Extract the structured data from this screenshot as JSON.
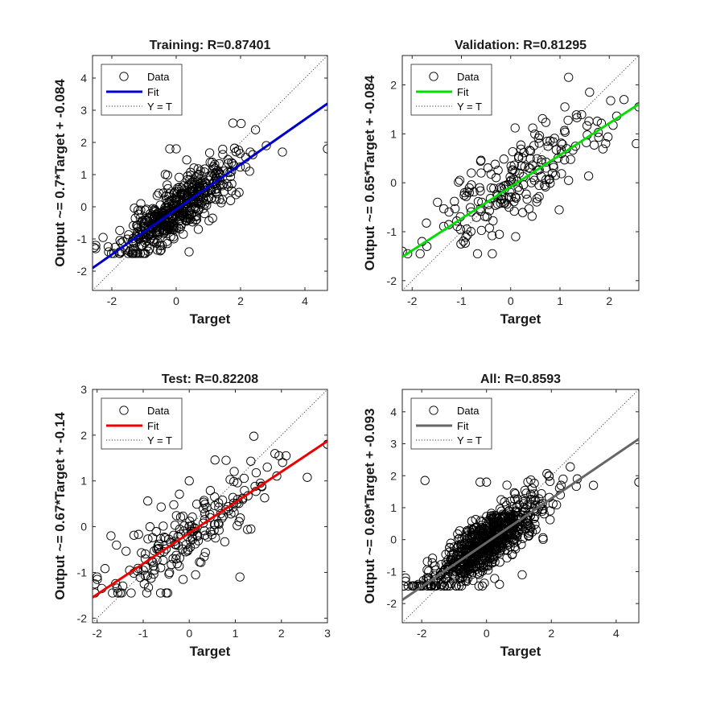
{
  "chart_data": [
    {
      "type": "scatter",
      "id": "training",
      "title": "Training: R=0.87401",
      "xlabel": "Target",
      "ylabel": "Output ~= 0.7*Target + -0.084",
      "xlim": [
        -2.6,
        4.7
      ],
      "ylim": [
        -2.6,
        4.7
      ],
      "xticks": [
        -2,
        0,
        2,
        4
      ],
      "yticks": [
        -2,
        -1,
        0,
        1,
        2,
        3,
        4
      ],
      "fit": {
        "slope": 0.7,
        "intercept": -0.084,
        "color": "#0000cc"
      },
      "legend": {
        "entries": [
          "Data",
          "Fit",
          "Y = T"
        ],
        "position": "top-left"
      },
      "cluster": {
        "count": 520,
        "xmean": 0.0,
        "xsd": 0.85,
        "noise": 0.42,
        "seed": 11
      },
      "points": [
        [
          -2.5,
          -1.2
        ],
        [
          -2.5,
          -1.3
        ],
        [
          4.7,
          1.8
        ],
        [
          3.3,
          1.7
        ],
        [
          2.3,
          1.7
        ],
        [
          -0.2,
          1.8
        ],
        [
          0.0,
          1.8
        ],
        [
          -2.1,
          -1.4
        ],
        [
          -1.7,
          -1.4
        ],
        [
          0.4,
          -1.4
        ],
        [
          2.8,
          1.9
        ]
      ]
    },
    {
      "type": "scatter",
      "id": "validation",
      "title": "Validation: R=0.81295",
      "xlabel": "Target",
      "ylabel": "Output ~= 0.65*Target + -0.084",
      "xlim": [
        -2.2,
        2.6
      ],
      "ylim": [
        -2.2,
        2.6
      ],
      "xticks": [
        -2,
        -1,
        0,
        1,
        2
      ],
      "yticks": [
        -2,
        -1,
        0,
        1,
        2
      ],
      "fit": {
        "slope": 0.65,
        "intercept": -0.084,
        "color": "#00dd00"
      },
      "legend": {
        "entries": [
          "Data",
          "Fit",
          "Y = T"
        ],
        "position": "top-left"
      },
      "cluster": {
        "count": 200,
        "xmean": 0.1,
        "xsd": 0.85,
        "noise": 0.45,
        "seed": 23
      },
      "points": [
        [
          -2.2,
          -1.4
        ],
        [
          2.6,
          1.55
        ],
        [
          2.3,
          1.7
        ],
        [
          2.55,
          0.8
        ],
        [
          1.6,
          1.85
        ],
        [
          1.1,
          1.55
        ],
        [
          -0.6,
          0.2
        ],
        [
          -0.8,
          0.2
        ],
        [
          -1.8,
          -1.2
        ],
        [
          -1.7,
          -1.3
        ],
        [
          0.1,
          -1.1
        ]
      ]
    },
    {
      "type": "scatter",
      "id": "test",
      "title": "Test: R=0.82208",
      "xlabel": "Target",
      "ylabel": "Output ~= 0.67*Target + -0.14",
      "xlim": [
        -2.1,
        3.0
      ],
      "ylim": [
        -2.1,
        3.0
      ],
      "xticks": [
        -2,
        -1,
        0,
        1,
        2,
        3
      ],
      "yticks": [
        -2,
        -1,
        0,
        1,
        2,
        3
      ],
      "fit": {
        "slope": 0.67,
        "intercept": -0.14,
        "color": "#ee0000"
      },
      "legend": {
        "entries": [
          "Data",
          "Fit",
          "Y = T"
        ],
        "position": "top-left"
      },
      "cluster": {
        "count": 190,
        "xmean": 0.1,
        "xsd": 0.85,
        "noise": 0.42,
        "seed": 37
      },
      "points": [
        [
          3.0,
          1.8
        ],
        [
          2.1,
          1.55
        ],
        [
          1.95,
          1.55
        ],
        [
          -2.0,
          -1.1
        ],
        [
          -1.9,
          -1.35
        ],
        [
          -1.7,
          -0.2
        ],
        [
          0.0,
          1.0
        ],
        [
          0.8,
          1.45
        ],
        [
          1.1,
          -1.1
        ],
        [
          -0.5,
          -1.45
        ],
        [
          -1.5,
          -1.45
        ]
      ]
    },
    {
      "type": "scatter",
      "id": "all",
      "title": "All: R=0.8593",
      "xlabel": "Target",
      "ylabel": "Output ~= 0.69*Target + -0.093",
      "xlim": [
        -2.6,
        4.7
      ],
      "ylim": [
        -2.6,
        4.7
      ],
      "xticks": [
        -2,
        0,
        2,
        4
      ],
      "yticks": [
        -2,
        -1,
        0,
        1,
        2,
        3,
        4
      ],
      "fit": {
        "slope": 0.69,
        "intercept": -0.093,
        "color": "#666666"
      },
      "legend": {
        "entries": [
          "Data",
          "Fit",
          "Y = T"
        ],
        "position": "top-left"
      },
      "cluster": {
        "count": 760,
        "xmean": 0.0,
        "xsd": 0.85,
        "noise": 0.42,
        "seed": 53
      },
      "points": [
        [
          -2.5,
          -1.2
        ],
        [
          -2.5,
          -1.3
        ],
        [
          4.7,
          1.8
        ],
        [
          3.3,
          1.7
        ],
        [
          2.3,
          1.7
        ],
        [
          -0.2,
          1.8
        ],
        [
          0.0,
          1.8
        ],
        [
          -1.9,
          1.85
        ],
        [
          -2.1,
          -1.4
        ],
        [
          2.8,
          1.9
        ],
        [
          1.1,
          -1.1
        ],
        [
          0.4,
          -1.4
        ]
      ]
    }
  ]
}
